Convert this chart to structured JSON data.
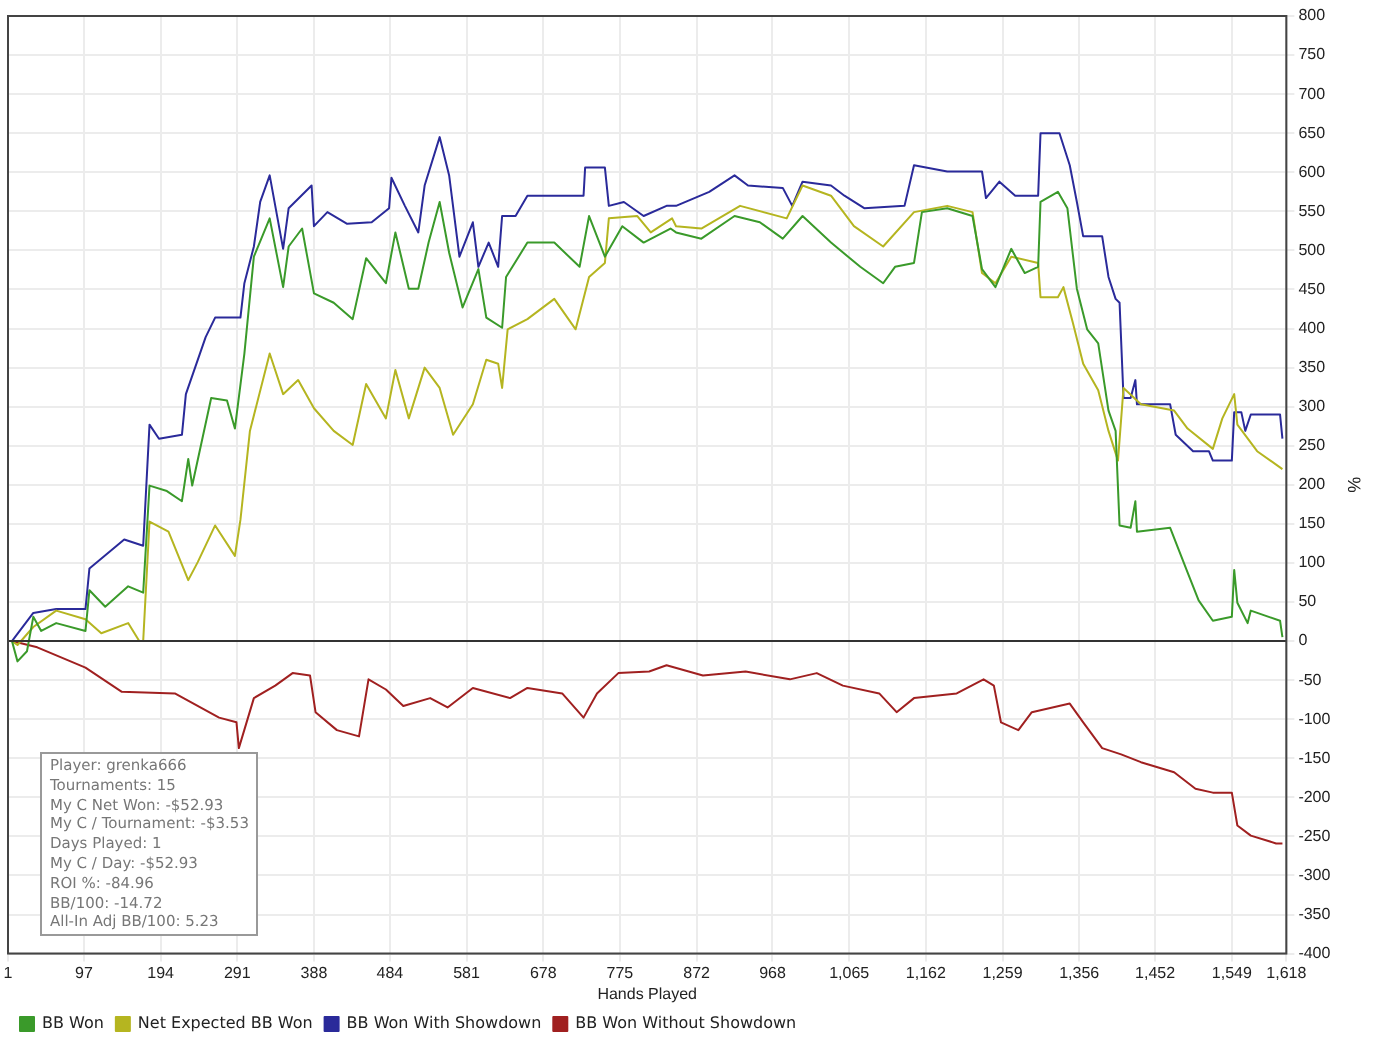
{
  "chart_data": {
    "type": "line",
    "xlabel": "Hands Played",
    "ylabel": "%",
    "legend": "bottom left",
    "grid": true,
    "marker": "none",
    "line_style": "solid",
    "xlim": [
      1,
      1618
    ],
    "xticks": [
      1,
      97,
      194,
      291,
      388,
      484,
      581,
      678,
      775,
      872,
      968,
      {
        "value": 1065,
        "label": "1,065"
      },
      {
        "value": 1162,
        "label": "1,162"
      },
      {
        "value": 1259,
        "label": "1,259"
      },
      {
        "value": 1356,
        "label": "1,356"
      },
      {
        "value": 1452,
        "label": "1,452"
      },
      {
        "value": 1549,
        "label": "1,549"
      },
      {
        "value": 1618,
        "label": "1,618"
      }
    ],
    "ylim": [
      -400,
      800
    ],
    "yticks": [
      -400,
      -350,
      -300,
      -250,
      -200,
      -150,
      -100,
      -50,
      0,
      50,
      100,
      150,
      200,
      250,
      300,
      350,
      400,
      450,
      500,
      550,
      600,
      650,
      700,
      750,
      800
    ],
    "ref_lines": [
      {
        "axis": "y",
        "value": 0,
        "color": "#333333"
      }
    ],
    "annotations": [
      "Player: grenka666",
      "Tournaments: 15",
      "My C Net Won: -$52.93",
      "My C / Tournament: -$3.53",
      "Days Played: 1",
      "My C / Day: -$52.93",
      "ROI %: -84.96",
      "BB/100: -14.72",
      "All-In Adj BB/100: 5.23"
    ],
    "series": [
      {
        "name": "BB Won",
        "color": "#3a9a2a",
        "x": [
          6,
          13,
          25,
          33,
          43,
          62,
          99,
          104,
          124,
          153,
          172,
          180,
          202,
          221,
          229,
          234,
          258,
          278,
          288,
          300,
          312,
          332,
          349,
          356,
          373,
          388,
          413,
          437,
          454,
          479,
          491,
          508,
          520,
          533,
          547,
          559,
          576,
          596,
          606,
          626,
          631,
          658,
          692,
          724,
          736,
          756,
          778,
          805,
          839,
          846,
          878,
          920,
          952,
          981,
          1006,
          1042,
          1079,
          1108,
          1123,
          1147,
          1157,
          1189,
          1221,
          1233,
          1250,
          1270,
          1287,
          1304,
          1307,
          1329,
          1341,
          1353,
          1366,
          1380,
          1393,
          1402,
          1407,
          1421,
          1427,
          1429,
          1471,
          1493,
          1507,
          1525,
          1549,
          1552,
          1556,
          1569,
          1573,
          1610,
          1613
        ],
        "values": [
          0,
          -26,
          -13,
          31,
          13,
          23,
          13,
          65,
          44,
          70,
          62,
          199,
          192,
          179,
          233,
          199,
          311,
          308,
          272,
          368,
          492,
          541,
          453,
          505,
          528,
          445,
          433,
          412,
          490,
          458,
          523,
          451,
          451,
          510,
          562,
          497,
          427,
          476,
          414,
          401,
          466,
          510,
          510,
          479,
          544,
          492,
          531,
          510,
          528,
          523,
          515,
          544,
          536,
          515,
          544,
          510,
          479,
          458,
          479,
          484,
          549,
          554,
          544,
          476,
          453,
          502,
          471,
          479,
          562,
          575,
          554,
          451,
          399,
          381,
          295,
          269,
          148,
          145,
          179,
          140,
          145,
          88,
          52,
          26,
          31,
          91,
          49,
          23,
          39,
          26,
          5
        ]
      },
      {
        "name": "Net Expected BB Won",
        "color": "#b5b520",
        "x": [
          6,
          13,
          33,
          62,
          99,
          119,
          153,
          167,
          172,
          180,
          204,
          229,
          241,
          263,
          288,
          295,
          307,
          332,
          349,
          368,
          388,
          413,
          437,
          454,
          479,
          491,
          508,
          528,
          547,
          564,
          589,
          606,
          621,
          626,
          633,
          658,
          692,
          719,
          736,
          756,
          761,
          797,
          814,
          841,
          846,
          878,
          927,
          986,
          1006,
          1042,
          1071,
          1108,
          1147,
          1189,
          1221,
          1233,
          1250,
          1270,
          1304,
          1307,
          1329,
          1336,
          1348,
          1361,
          1380,
          1393,
          1405,
          1412,
          1434,
          1476,
          1493,
          1525,
          1537,
          1552,
          1556,
          1581,
          1613
        ],
        "values": [
          0,
          -5,
          18,
          39,
          28,
          10,
          23,
          0,
          0,
          153,
          140,
          78,
          101,
          148,
          109,
          155,
          269,
          368,
          316,
          334,
          298,
          269,
          251,
          329,
          285,
          347,
          285,
          350,
          324,
          264,
          303,
          360,
          355,
          324,
          399,
          412,
          438,
          399,
          466,
          484,
          541,
          544,
          523,
          541,
          531,
          528,
          557,
          541,
          583,
          570,
          531,
          505,
          549,
          557,
          549,
          471,
          458,
          492,
          484,
          440,
          440,
          453,
          407,
          355,
          321,
          269,
          231,
          324,
          303,
          295,
          272,
          246,
          285,
          316,
          277,
          243,
          220
        ]
      },
      {
        "name": "BB Won With Showdown",
        "color": "#2a2a9a",
        "x": [
          6,
          33,
          62,
          99,
          104,
          148,
          172,
          180,
          192,
          221,
          226,
          251,
          263,
          295,
          300,
          312,
          320,
          332,
          349,
          356,
          385,
          388,
          405,
          430,
          461,
          483,
          486,
          503,
          520,
          528,
          547,
          559,
          572,
          589,
          596,
          609,
          621,
          626,
          643,
          658,
          729,
          731,
          756,
          761,
          780,
          805,
          834,
          846,
          888,
          920,
          937,
          981,
          993,
          1006,
          1042,
          1059,
          1084,
          1135,
          1147,
          1189,
          1233,
          1238,
          1255,
          1275,
          1304,
          1307,
          1331,
          1344,
          1353,
          1361,
          1385,
          1393,
          1402,
          1407,
          1412,
          1421,
          1427,
          1429,
          1471,
          1478,
          1500,
          1520,
          1525,
          1549,
          1552,
          1561,
          1566,
          1573,
          1610,
          1613
        ],
        "values": [
          0,
          36,
          41,
          41,
          93,
          130,
          122,
          277,
          259,
          264,
          316,
          389,
          414,
          414,
          458,
          505,
          562,
          596,
          502,
          554,
          583,
          531,
          549,
          534,
          536,
          554,
          593,
          557,
          523,
          583,
          645,
          596,
          492,
          536,
          479,
          510,
          479,
          544,
          544,
          570,
          570,
          606,
          606,
          557,
          562,
          544,
          557,
          557,
          575,
          596,
          583,
          580,
          557,
          588,
          583,
          570,
          554,
          557,
          609,
          601,
          601,
          567,
          588,
          570,
          570,
          650,
          650,
          609,
          562,
          518,
          518,
          466,
          438,
          433,
          311,
          311,
          334,
          303,
          303,
          264,
          243,
          243,
          231,
          231,
          293,
          293,
          269,
          290,
          290,
          259
        ]
      },
      {
        "name": "BB Won Without Showdown",
        "color": "#a02020",
        "x": [
          6,
          38,
          99,
          145,
          212,
          268,
          290,
          293,
          312,
          339,
          361,
          383,
          390,
          417,
          445,
          457,
          479,
          501,
          535,
          557,
          589,
          636,
          658,
          702,
          729,
          746,
          773,
          812,
          834,
          880,
          934,
          990,
          1024,
          1057,
          1103,
          1125,
          1147,
          1201,
          1235,
          1248,
          1257,
          1279,
          1296,
          1344,
          1361,
          1385,
          1409,
          1434,
          1476,
          1503,
          1525,
          1549,
          1556,
          1573,
          1605,
          1613
        ],
        "values": [
          0,
          -8,
          -34,
          -65,
          -67,
          -98,
          -104,
          -137,
          -73,
          -57,
          -41,
          -44,
          -91,
          -114,
          -122,
          -49,
          -62,
          -83,
          -73,
          -85,
          -60,
          -73,
          -60,
          -67,
          -98,
          -67,
          -41,
          -39,
          -31,
          -44,
          -39,
          -49,
          -41,
          -57,
          -67,
          -91,
          -73,
          -67,
          -49,
          -57,
          -104,
          -114,
          -91,
          -80,
          -104,
          -137,
          -145,
          -155,
          -168,
          -189,
          -194,
          -194,
          -236,
          -249,
          -259,
          -259
        ]
      }
    ]
  }
}
